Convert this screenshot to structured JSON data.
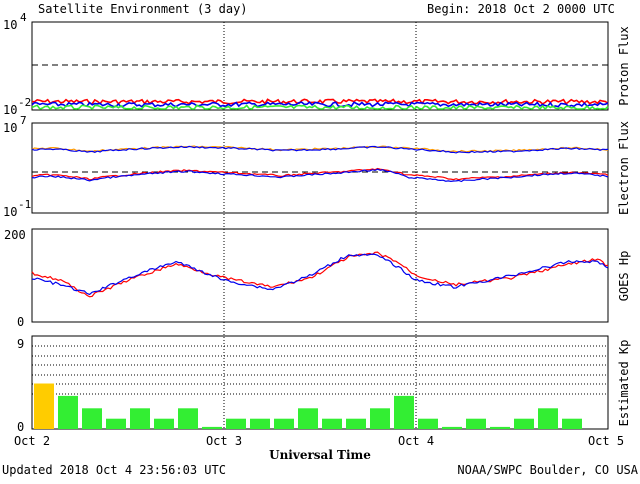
{
  "header": {
    "title": "Satellite Environment (3 day)",
    "begin": "Begin:  2018 Oct 2 0000 UTC"
  },
  "footer": {
    "updated": "Updated 2018 Oct  4 23:56:03 UTC",
    "source": "NOAA/SWPC Boulder, CO USA"
  },
  "colors": {
    "red": "#ff0000",
    "blue": "#0000ee",
    "green": "#33ee33",
    "orange": "#ff9900",
    "kp_high": "#ffcc00",
    "kp_normal": "#33ee33"
  },
  "chart_data": [
    {
      "type": "line",
      "name": "proton",
      "ylabel": "Proton Flux",
      "yscale": "log",
      "ylim_exp": [
        -2,
        4
      ],
      "tick_labels": [
        {
          "base": "10",
          "exp": "4"
        },
        {
          "base": "10",
          "exp": "-2"
        }
      ],
      "threshold": 10,
      "x_days": [
        0,
        0.5,
        1,
        1.5,
        2,
        2.5,
        3
      ],
      "series": [
        {
          "color": "red",
          "values": [
            0.038,
            0.037,
            0.037,
            0.038,
            0.037,
            0.037,
            0.036
          ]
        },
        {
          "color": "blue",
          "values": [
            0.024,
            0.023,
            0.024,
            0.024,
            0.024,
            0.023,
            0.023
          ]
        },
        {
          "color": "green",
          "values": [
            0.015,
            0.014,
            0.015,
            0.015,
            0.014,
            0.014,
            0.014
          ]
        }
      ]
    },
    {
      "type": "line",
      "name": "electron",
      "ylabel": "Electron Flux",
      "yscale": "log",
      "ylim_exp": [
        -1,
        7
      ],
      "tick_labels": [
        {
          "base": "10",
          "exp": "7"
        },
        {
          "base": "10",
          "exp": "-1"
        }
      ],
      "threshold": 1000,
      "x_days": [
        0,
        0.1,
        0.3,
        0.5,
        0.8,
        1.0,
        1.3,
        1.6,
        1.8,
        1.95,
        2.2,
        2.5,
        2.8,
        3.0
      ],
      "series": [
        {
          "color": "orange",
          "values": [
            50000,
            60000,
            30000,
            50000,
            80000,
            70000,
            40000,
            55000,
            80000,
            60000,
            30000,
            35000,
            60000,
            45000
          ]
        },
        {
          "color": "blue",
          "values": [
            40000,
            50000,
            25000,
            45000,
            75000,
            60000,
            35000,
            50000,
            75000,
            50000,
            25000,
            30000,
            55000,
            40000
          ]
        },
        {
          "color": "red",
          "values": [
            200,
            250,
            100,
            250,
            600,
            400,
            200,
            450,
            800,
            250,
            100,
            180,
            400,
            250
          ]
        },
        {
          "color": "blue",
          "values": [
            150,
            180,
            80,
            200,
            500,
            300,
            150,
            350,
            700,
            150,
            60,
            150,
            350,
            180
          ]
        }
      ]
    },
    {
      "type": "line",
      "name": "hp",
      "ylabel": "GOES Hp",
      "ylim": [
        0,
        200
      ],
      "tick_labels": [
        "200",
        "0"
      ],
      "x_days": [
        0,
        0.15,
        0.3,
        0.5,
        0.75,
        1.0,
        1.25,
        1.45,
        1.65,
        1.8,
        1.9,
        2.0,
        2.2,
        2.5,
        2.8,
        2.95,
        3.0
      ],
      "series": [
        {
          "color": "red",
          "values": [
            105,
            90,
            55,
            90,
            125,
            95,
            75,
            95,
            140,
            148,
            130,
            100,
            80,
            95,
            125,
            135,
            120
          ]
        },
        {
          "color": "blue",
          "values": [
            95,
            80,
            60,
            95,
            130,
            90,
            70,
            100,
            145,
            143,
            120,
            90,
            75,
            100,
            130,
            130,
            115
          ]
        }
      ]
    },
    {
      "type": "bar",
      "name": "kp",
      "ylabel": "Estimated Kp",
      "ylim": [
        0,
        9
      ],
      "tick_labels": [
        "9",
        "0"
      ],
      "values": [
        4.4,
        3.2,
        2.0,
        1.0,
        2.0,
        1.0,
        2.0,
        0.2,
        1.0,
        1.0,
        1.0,
        2.0,
        1.0,
        1.0,
        2.0,
        3.2,
        1.0,
        0.2,
        1.0,
        0.2,
        1.0,
        2.0,
        1.0,
        0.0
      ],
      "highlight_threshold": 4
    }
  ],
  "x_axis": {
    "title": "Universal Time",
    "ticks": [
      "Oct 2",
      "Oct 3",
      "Oct 4",
      "Oct 5"
    ]
  }
}
